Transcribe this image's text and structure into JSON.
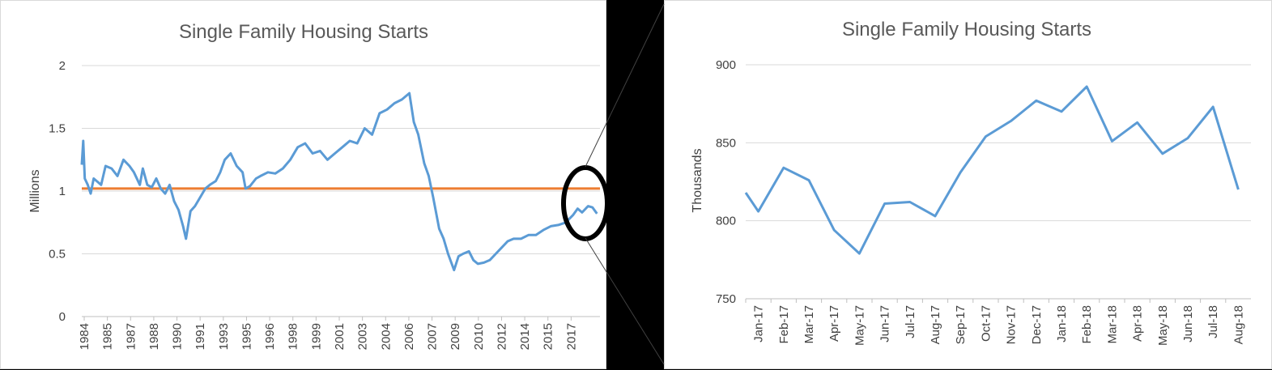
{
  "colors": {
    "series": "#5b9bd5",
    "reference": "#ed7d31",
    "highlight": "#000000",
    "connector": "#404040"
  },
  "chart_data": [
    {
      "type": "line",
      "title": "Single Family Housing Starts",
      "xlabel": "",
      "ylabel": "Millions",
      "ylim": [
        0,
        2
      ],
      "yticks": [
        0,
        0.5,
        1,
        1.5,
        2
      ],
      "ytick_labels": [
        "0",
        "0.5",
        "1",
        "1.5",
        "2"
      ],
      "xlim": [
        1984,
        2018.8
      ],
      "xtick_labels": [
        "1984",
        "1985",
        "1987",
        "1988",
        "1990",
        "1991",
        "1993",
        "1995",
        "1996",
        "1998",
        "1999",
        "2001",
        "2003",
        "2004",
        "2006",
        "2007",
        "2009",
        "2010",
        "2012",
        "2014",
        "2015",
        "2017"
      ],
      "reference_line": {
        "y": 1.02
      },
      "grid": true,
      "legend": "none",
      "annotation": "black ellipse circling 2017-2018 values, zoomed in right panel",
      "series": [
        {
          "x": [
            1984.0,
            1984.1,
            1984.2,
            1984.4,
            1984.6,
            1984.8,
            1985.0,
            1985.3,
            1985.6,
            1986.0,
            1986.4,
            1986.8,
            1987.2,
            1987.5,
            1987.9,
            1988.1,
            1988.4,
            1988.7,
            1989.0,
            1989.3,
            1989.6,
            1989.9,
            1990.2,
            1990.5,
            1990.8,
            1991.0,
            1991.3,
            1991.6,
            1992.0,
            1992.3,
            1992.6,
            1993.0,
            1993.3,
            1993.6,
            1994.0,
            1994.4,
            1994.8,
            1995.0,
            1995.3,
            1995.7,
            1996.0,
            1996.5,
            1997.0,
            1997.5,
            1998.0,
            1998.5,
            1999.0,
            1999.5,
            2000.0,
            2000.5,
            2001.0,
            2001.5,
            2002.0,
            2002.5,
            2003.0,
            2003.5,
            2004.0,
            2004.5,
            2005.0,
            2005.5,
            2006.0,
            2006.3,
            2006.6,
            2007.0,
            2007.3,
            2007.6,
            2008.0,
            2008.3,
            2008.6,
            2009.0,
            2009.3,
            2009.6,
            2010.0,
            2010.3,
            2010.6,
            2011.0,
            2011.4,
            2011.8,
            2012.2,
            2012.6,
            2013.0,
            2013.5,
            2014.0,
            2014.5,
            2015.0,
            2015.5,
            2016.0,
            2016.5,
            2017.0,
            2017.3,
            2017.6,
            2018.0,
            2018.3,
            2018.6
          ],
          "y": [
            1.21,
            1.4,
            1.1,
            1.05,
            0.98,
            1.1,
            1.08,
            1.05,
            1.2,
            1.18,
            1.12,
            1.25,
            1.2,
            1.15,
            1.05,
            1.18,
            1.05,
            1.03,
            1.1,
            1.02,
            0.98,
            1.05,
            0.92,
            0.85,
            0.72,
            0.62,
            0.84,
            0.88,
            0.96,
            1.02,
            1.05,
            1.08,
            1.15,
            1.25,
            1.3,
            1.2,
            1.15,
            1.02,
            1.04,
            1.1,
            1.12,
            1.15,
            1.14,
            1.18,
            1.25,
            1.35,
            1.38,
            1.3,
            1.32,
            1.25,
            1.3,
            1.35,
            1.4,
            1.38,
            1.5,
            1.45,
            1.62,
            1.65,
            1.7,
            1.73,
            1.78,
            1.55,
            1.45,
            1.22,
            1.12,
            0.95,
            0.7,
            0.62,
            0.5,
            0.37,
            0.48,
            0.5,
            0.52,
            0.45,
            0.42,
            0.43,
            0.45,
            0.5,
            0.55,
            0.6,
            0.62,
            0.62,
            0.65,
            0.65,
            0.69,
            0.72,
            0.73,
            0.75,
            0.81,
            0.86,
            0.83,
            0.88,
            0.87,
            0.82
          ]
        }
      ]
    },
    {
      "type": "line",
      "title": "Single Family Housing Starts",
      "xlabel": "",
      "ylabel": "Thousands",
      "ylim": [
        750,
        900
      ],
      "yticks": [
        750,
        800,
        850,
        900
      ],
      "ytick_labels": [
        "750",
        "800",
        "850",
        "900"
      ],
      "categories": [
        "Jan-17",
        "Feb-17",
        "Mar-17",
        "Apr-17",
        "May-17",
        "Jun-17",
        "Jul-17",
        "Aug-17",
        "Sep-17",
        "Oct-17",
        "Nov-17",
        "Dec-17",
        "Jan-18",
        "Feb-18",
        "Mar-18",
        "Apr-18",
        "May-18",
        "Jun-18",
        "Jul-18",
        "Aug-18"
      ],
      "grid": true,
      "legend": "none",
      "series": [
        {
          "values": [
            806,
            834,
            826,
            794,
            779,
            811,
            812,
            803,
            831,
            854,
            864,
            877,
            870,
            886,
            851,
            863,
            843,
            853,
            873,
            820
          ]
        }
      ]
    }
  ]
}
